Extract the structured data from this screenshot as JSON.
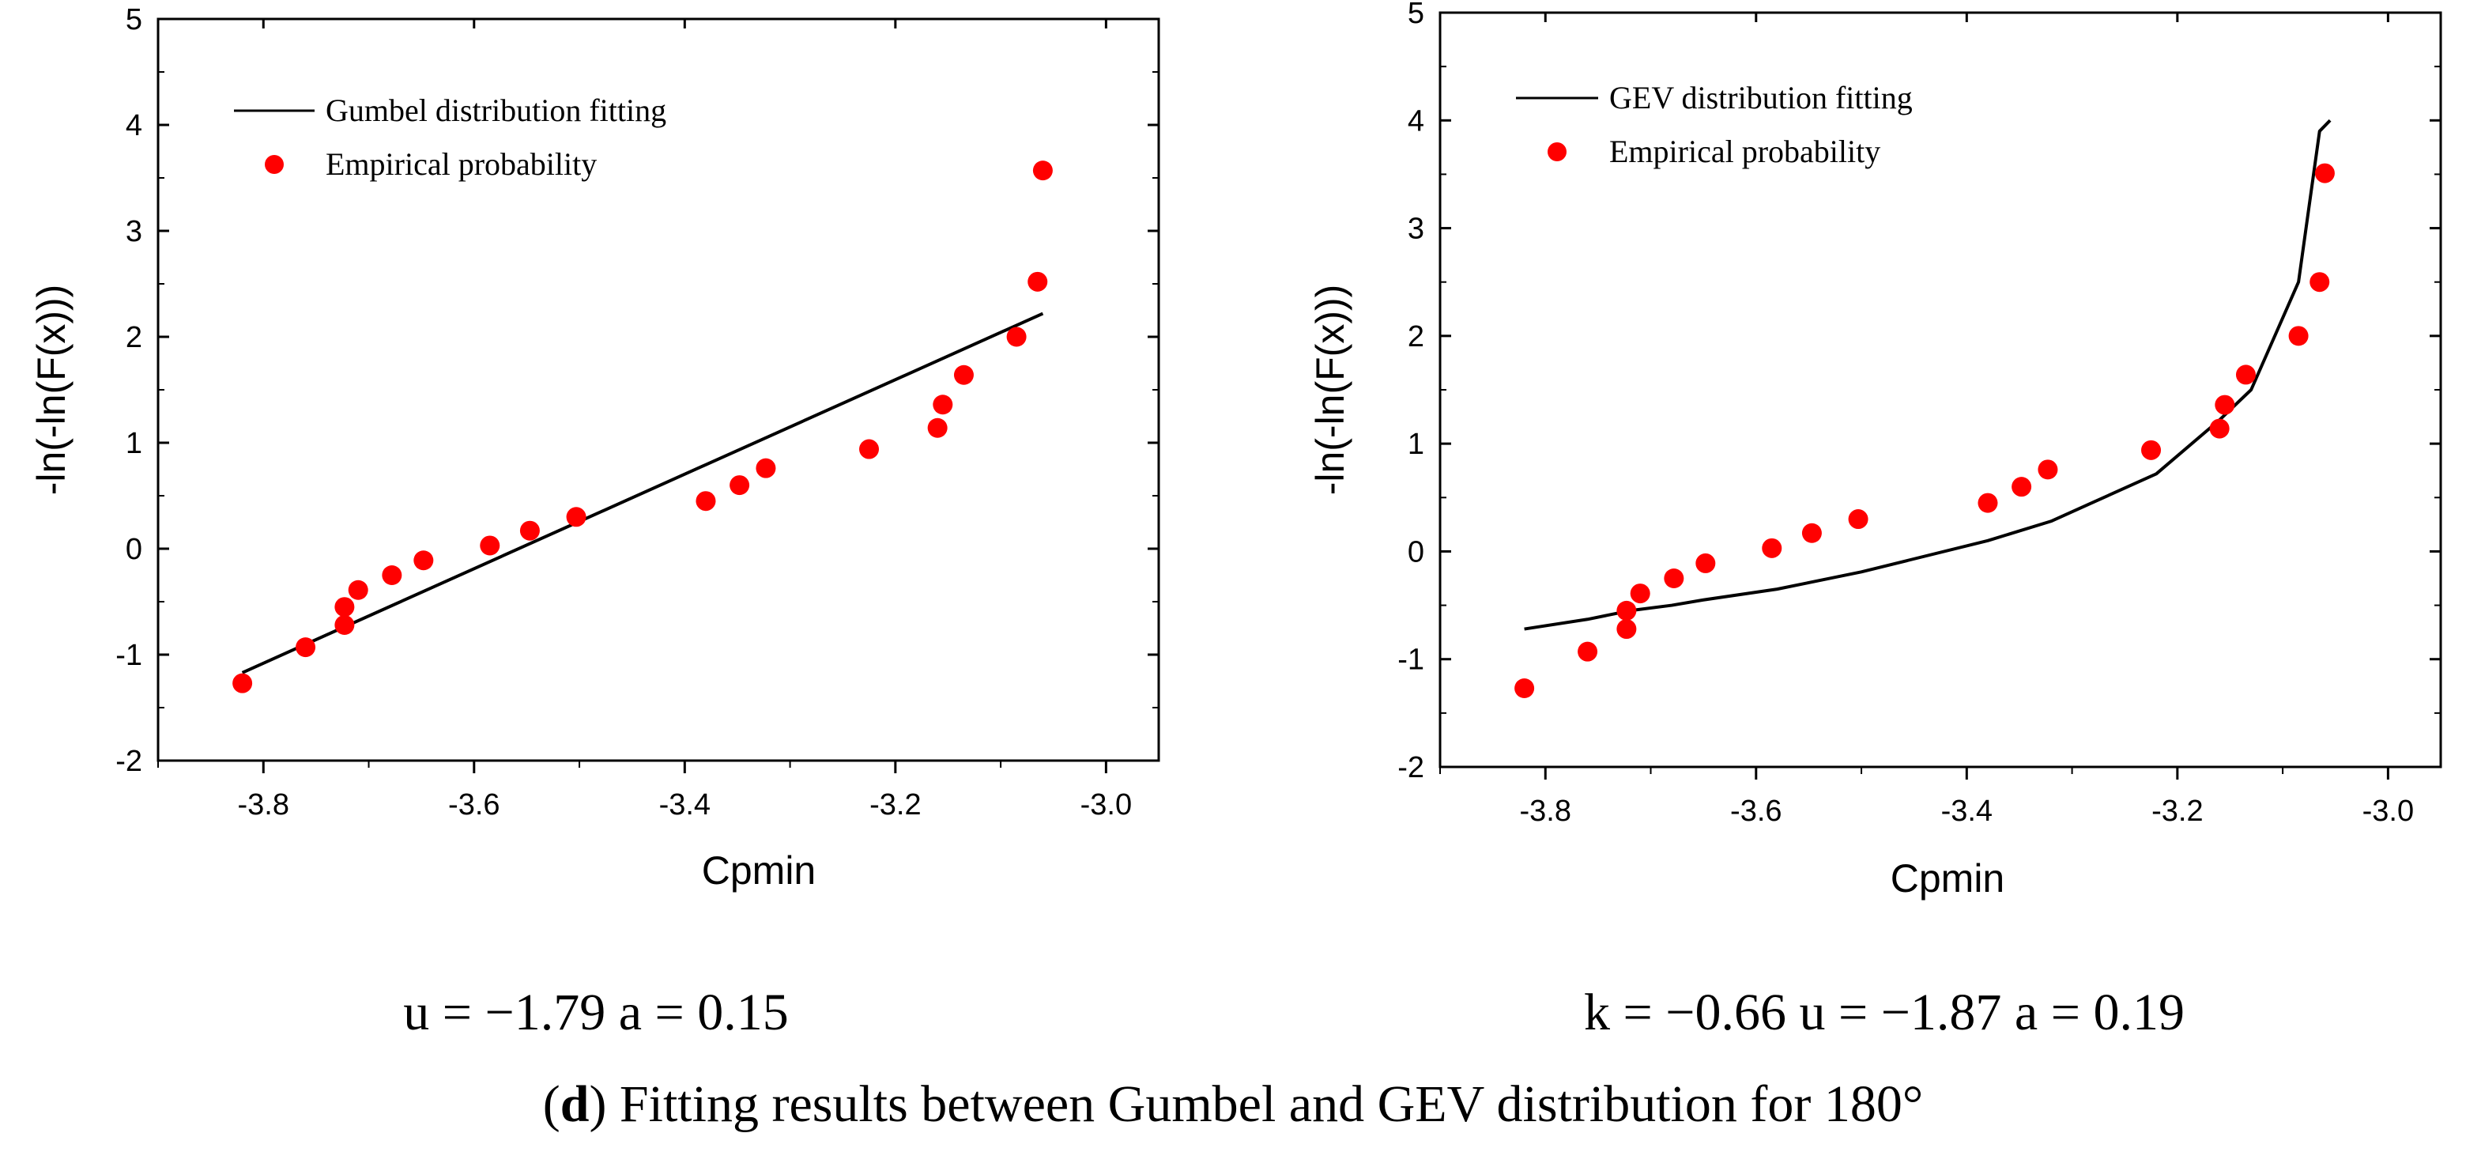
{
  "chart_data": [
    {
      "type": "line",
      "xlabel": "Cpmin",
      "ylabel": "-ln(-ln(F(x)))",
      "xlim": [
        -3.9,
        -2.95
      ],
      "ylim": [
        -2,
        5
      ],
      "xticks": [
        -3.8,
        -3.6,
        -3.4,
        -3.2,
        -3.0
      ],
      "xtick_labels": [
        "-3.8",
        "-3.6",
        "-3.4",
        "-3.2",
        "-3.0"
      ],
      "yticks": [
        -2,
        -1,
        0,
        1,
        2,
        3,
        4,
        5
      ],
      "ytick_labels": [
        "-2",
        "-1",
        "0",
        "1",
        "2",
        "3",
        "4",
        "5"
      ],
      "legend_position": "top-left",
      "series": [
        {
          "name": "Gumbel distribution fitting",
          "kind": "line",
          "color": "#000000",
          "x": [
            -3.82,
            -3.06
          ],
          "y": [
            -1.17,
            2.22
          ]
        },
        {
          "name": "Empirical probability",
          "kind": "scatter",
          "color": "#ff0000",
          "x": [
            -3.82,
            -3.76,
            -3.723,
            -3.723,
            -3.71,
            -3.678,
            -3.648,
            -3.585,
            -3.547,
            -3.503,
            -3.38,
            -3.348,
            -3.323,
            -3.225,
            -3.16,
            -3.155,
            -3.135,
            -3.085,
            -3.065,
            -3.06
          ],
          "y": [
            -1.27,
            -0.93,
            -0.72,
            -0.55,
            -0.39,
            -0.25,
            -0.11,
            0.03,
            0.17,
            0.3,
            0.45,
            0.6,
            0.76,
            0.94,
            1.14,
            1.36,
            1.64,
            2.0,
            2.52,
            3.57
          ]
        }
      ],
      "annotation": "u = −1.79 a = 0.15"
    },
    {
      "type": "line",
      "xlabel": "Cpmin",
      "ylabel": "-ln(-ln(F(x)))",
      "xlim": [
        -3.9,
        -2.95
      ],
      "ylim": [
        -2,
        5
      ],
      "xticks": [
        -3.8,
        -3.6,
        -3.4,
        -3.2,
        -3.0
      ],
      "xtick_labels": [
        "-3.8",
        "-3.6",
        "-3.4",
        "-3.2",
        "-3.0"
      ],
      "yticks": [
        -2,
        -1,
        0,
        1,
        2,
        3,
        4,
        5
      ],
      "ytick_labels": [
        "-2",
        "-1",
        "0",
        "1",
        "2",
        "3",
        "4",
        "5"
      ],
      "legend_position": "top-left",
      "series": [
        {
          "name": "GEV distribution fitting",
          "kind": "line",
          "color": "#000000",
          "x": [
            -3.82,
            -3.76,
            -3.72,
            -3.68,
            -3.65,
            -3.58,
            -3.55,
            -3.5,
            -3.38,
            -3.32,
            -3.22,
            -3.16,
            -3.13,
            -3.085,
            -3.065,
            -3.055
          ],
          "y": [
            -0.72,
            -0.63,
            -0.55,
            -0.5,
            -0.45,
            -0.35,
            -0.29,
            -0.19,
            0.1,
            0.28,
            0.72,
            1.22,
            1.5,
            2.5,
            3.9,
            4.0
          ]
        },
        {
          "name": "Empirical probability",
          "kind": "scatter",
          "color": "#ff0000",
          "x": [
            -3.82,
            -3.76,
            -3.723,
            -3.723,
            -3.71,
            -3.678,
            -3.648,
            -3.585,
            -3.547,
            -3.503,
            -3.38,
            -3.348,
            -3.323,
            -3.225,
            -3.16,
            -3.155,
            -3.135,
            -3.085,
            -3.065,
            -3.06
          ],
          "y": [
            -1.27,
            -0.93,
            -0.72,
            -0.55,
            -0.39,
            -0.25,
            -0.11,
            0.03,
            0.17,
            0.3,
            0.45,
            0.6,
            0.76,
            0.94,
            1.14,
            1.36,
            1.64,
            2.0,
            2.5,
            3.51
          ]
        }
      ],
      "annotation": "k = −0.66 u = −1.87 a = 0.19"
    }
  ],
  "panels": [
    {
      "legend_line": "Gumbel distribution fitting",
      "legend_points": "Empirical probability",
      "params": "u = −1.79 a = 0.15"
    },
    {
      "legend_line": "GEV distribution fitting",
      "legend_points": "Empirical probability",
      "params": "k = −0.66 u = −1.87 a = 0.19"
    }
  ],
  "caption": {
    "letter": "d",
    "text": ") Fitting results between Gumbel and GEV distribution for 180°"
  }
}
